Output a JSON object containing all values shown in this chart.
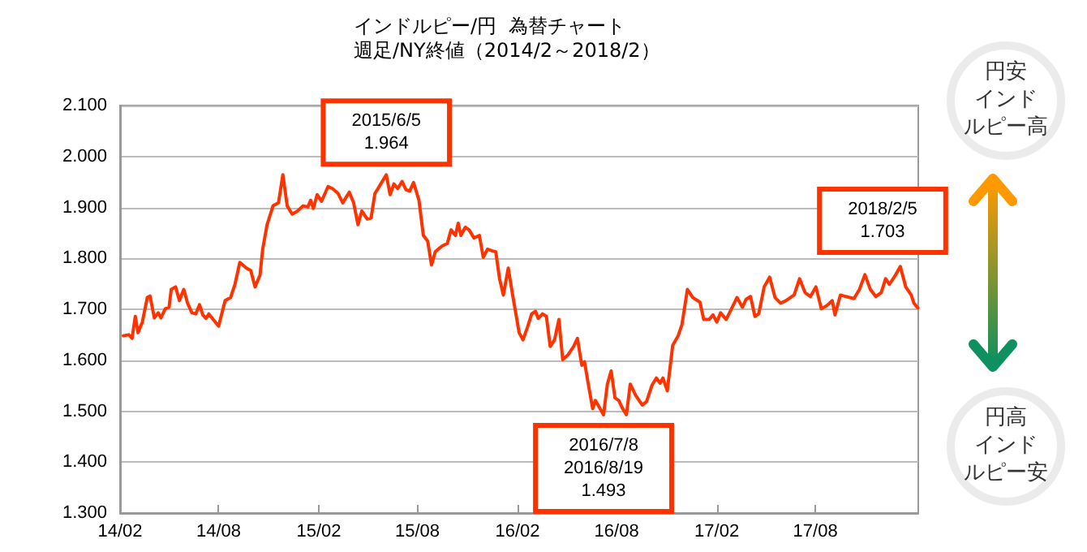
{
  "chart_data": {
    "type": "line",
    "title": "インドルピー/円  為替チャート",
    "subtitle": "週足/NY終値（2014/2～2018/2）",
    "x": [
      "2014-02-07",
      "2014-02-17",
      "2014-02-23",
      "2014-03-01",
      "2014-03-06",
      "2014-03-14",
      "2014-03-23",
      "2014-03-28",
      "2014-04-05",
      "2014-04-12",
      "2014-04-17",
      "2014-04-25",
      "2014-05-02",
      "2014-05-06",
      "2014-05-14",
      "2014-05-21",
      "2014-05-29",
      "2014-06-05",
      "2014-06-13",
      "2014-06-20",
      "2014-06-27",
      "2014-07-03",
      "2014-07-09",
      "2014-07-14",
      "2014-07-22",
      "2014-08-01",
      "2014-08-13",
      "2014-08-23",
      "2014-08-31",
      "2014-09-09",
      "2014-09-21",
      "2014-09-29",
      "2014-10-07",
      "2014-10-16",
      "2014-10-21",
      "2014-10-29",
      "2014-11-09",
      "2014-11-19",
      "2014-11-27",
      "2014-12-05",
      "2014-12-14",
      "2014-12-24",
      "2015-01-03",
      "2015-01-12",
      "2015-01-17",
      "2015-01-22",
      "2015-01-29",
      "2015-02-06",
      "2015-02-18",
      "2015-02-26",
      "2015-03-08",
      "2015-03-17",
      "2015-03-29",
      "2015-04-06",
      "2015-04-14",
      "2015-04-21",
      "2015-05-01",
      "2015-05-08",
      "2015-05-15",
      "2015-06-05",
      "2015-06-12",
      "2015-06-19",
      "2015-06-26",
      "2015-07-04",
      "2015-07-11",
      "2015-07-18",
      "2015-07-25",
      "2015-08-04",
      "2015-08-12",
      "2015-08-20",
      "2015-08-27",
      "2015-09-03",
      "2015-09-15",
      "2015-09-25",
      "2015-10-02",
      "2015-10-10",
      "2015-10-15",
      "2015-10-20",
      "2015-10-28",
      "2015-11-04",
      "2015-11-13",
      "2015-11-23",
      "2015-11-30",
      "2015-12-08",
      "2015-12-16",
      "2015-12-23",
      "2015-12-30",
      "2016-01-06",
      "2016-01-15",
      "2016-01-23",
      "2016-02-04",
      "2016-02-11",
      "2016-02-19",
      "2016-02-27",
      "2016-03-05",
      "2016-03-10",
      "2016-03-18",
      "2016-03-25",
      "2016-04-01",
      "2016-04-09",
      "2016-04-17",
      "2016-04-24",
      "2016-05-04",
      "2016-05-14",
      "2016-05-21",
      "2016-05-29",
      "2016-06-03",
      "2016-06-10",
      "2016-06-18",
      "2016-06-23",
      "2016-07-08",
      "2016-07-15",
      "2016-07-22",
      "2016-07-29",
      "2016-08-05",
      "2016-08-12",
      "2016-08-19",
      "2016-08-26",
      "2016-09-05",
      "2016-09-17",
      "2016-09-25",
      "2016-10-05",
      "2016-10-13",
      "2016-10-20",
      "2016-10-25",
      "2016-11-02",
      "2016-11-12",
      "2016-11-22",
      "2016-11-29",
      "2016-12-09",
      "2016-12-19",
      "2017-01-01",
      "2017-01-08",
      "2017-01-18",
      "2017-01-25",
      "2017-02-01",
      "2017-02-08",
      "2017-02-18",
      "2017-02-28",
      "2017-03-10",
      "2017-03-20",
      "2017-03-27",
      "2017-04-04",
      "2017-04-12",
      "2017-04-19",
      "2017-04-29",
      "2017-05-09",
      "2017-05-19",
      "2017-05-29",
      "2017-06-08",
      "2017-06-23",
      "2017-07-03",
      "2017-07-13",
      "2017-07-23",
      "2017-08-02",
      "2017-08-12",
      "2017-08-22",
      "2017-09-01",
      "2017-09-06",
      "2017-09-16",
      "2017-09-26",
      "2017-10-11",
      "2017-10-21",
      "2017-10-31",
      "2017-11-10",
      "2017-11-20",
      "2017-11-30",
      "2017-12-08",
      "2017-12-15",
      "2017-12-25",
      "2018-01-04",
      "2018-01-14",
      "2018-01-24",
      "2018-01-29",
      "2018-02-05"
    ],
    "series": [
      {
        "color": "#ff3300",
        "values": [
          1.648,
          1.65,
          1.643,
          1.686,
          1.654,
          1.675,
          1.723,
          1.726,
          1.683,
          1.693,
          1.683,
          1.701,
          1.704,
          1.739,
          1.744,
          1.717,
          1.739,
          1.712,
          1.693,
          1.691,
          1.709,
          1.689,
          1.682,
          1.691,
          1.68,
          1.667,
          1.717,
          1.723,
          1.749,
          1.792,
          1.781,
          1.776,
          1.744,
          1.767,
          1.818,
          1.866,
          1.903,
          1.909,
          1.964,
          1.903,
          1.887,
          1.893,
          1.903,
          1.901,
          1.914,
          1.898,
          1.925,
          1.912,
          1.941,
          1.937,
          1.928,
          1.909,
          1.93,
          1.909,
          1.866,
          1.893,
          1.877,
          1.879,
          1.927,
          1.964,
          1.925,
          1.946,
          1.937,
          1.951,
          1.935,
          1.932,
          1.949,
          1.914,
          1.845,
          1.834,
          1.787,
          1.813,
          1.824,
          1.829,
          1.856,
          1.845,
          1.869,
          1.845,
          1.861,
          1.856,
          1.84,
          1.845,
          1.802,
          1.818,
          1.815,
          1.813,
          1.76,
          1.728,
          1.781,
          1.728,
          1.654,
          1.64,
          1.664,
          1.691,
          1.696,
          1.682,
          1.691,
          1.686,
          1.627,
          1.64,
          1.68,
          1.601,
          1.611,
          1.627,
          1.643,
          1.59,
          1.597,
          1.553,
          1.505,
          1.521,
          1.493,
          1.553,
          1.579,
          1.526,
          1.521,
          1.505,
          1.493,
          1.553,
          1.531,
          1.512,
          1.519,
          1.551,
          1.565,
          1.555,
          1.565,
          1.54,
          1.629,
          1.648,
          1.67,
          1.739,
          1.723,
          1.714,
          1.68,
          1.68,
          1.689,
          1.675,
          1.693,
          1.68,
          1.701,
          1.723,
          1.704,
          1.72,
          1.725,
          1.686,
          1.691,
          1.744,
          1.763,
          1.723,
          1.712,
          1.717,
          1.728,
          1.76,
          1.733,
          1.725,
          1.744,
          1.701,
          1.707,
          1.717,
          1.689,
          1.728,
          1.725,
          1.721,
          1.739,
          1.768,
          1.739,
          1.725,
          1.733,
          1.76,
          1.749,
          1.765,
          1.784,
          1.744,
          1.728,
          1.712,
          1.703
        ]
      }
    ],
    "xlim": [
      "2014-02-01",
      "2018-02-06"
    ],
    "xticks": [
      {
        "value": "2014-02-01",
        "label": "14/02"
      },
      {
        "value": "2014-08-01",
        "label": "14/08"
      },
      {
        "value": "2015-02-01",
        "label": "15/02"
      },
      {
        "value": "2015-08-01",
        "label": "15/08"
      },
      {
        "value": "2016-02-01",
        "label": "16/02"
      },
      {
        "value": "2016-08-01",
        "label": "16/08"
      },
      {
        "value": "2017-02-01",
        "label": "17/02"
      },
      {
        "value": "2017-08-01",
        "label": "17/08"
      }
    ],
    "ylim": [
      1.3,
      2.1
    ],
    "yticks": [
      {
        "value": 1.3,
        "label": "1.300"
      },
      {
        "value": 1.4,
        "label": "1.400"
      },
      {
        "value": 1.5,
        "label": "1.500"
      },
      {
        "value": 1.6,
        "label": "1.600"
      },
      {
        "value": 1.7,
        "label": "1.700"
      },
      {
        "value": 1.8,
        "label": "1.800"
      },
      {
        "value": 1.9,
        "label": "1.900"
      },
      {
        "value": 2.0,
        "label": "2.000"
      },
      {
        "value": 2.1,
        "label": "2.100"
      }
    ],
    "grid": "y",
    "marker": "none",
    "line_style": "solid",
    "annotations": [
      {
        "text": "2015/6/5\n1.964",
        "x": "2015-06-05",
        "y": 1.964
      },
      {
        "text": "2016/7/8\n2016/8/19\n1.493",
        "x": "2016-07-08",
        "y": 1.493
      },
      "2018/2/5\n1.703",
      "円安インドルピー高",
      "円高インドルピー安"
    ]
  }
}
